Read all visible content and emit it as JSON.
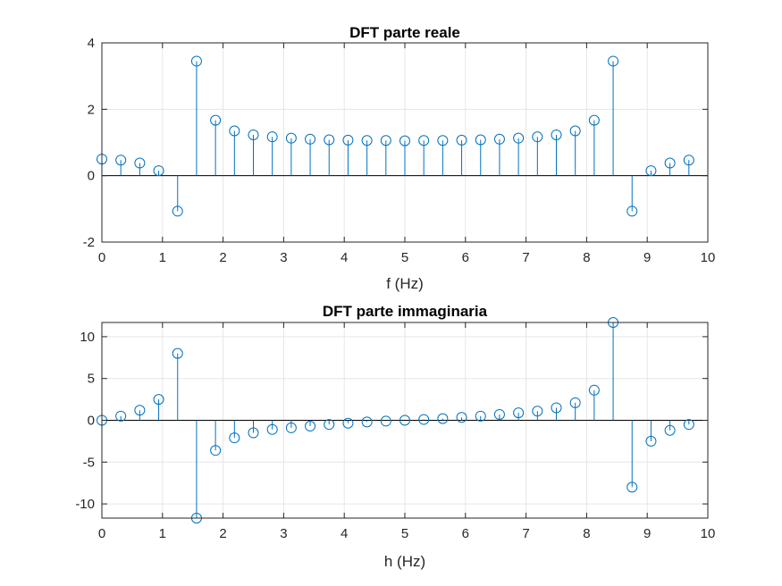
{
  "chart_data": [
    {
      "type": "stem",
      "title": "DFT parte reale",
      "xlabel": "f (Hz)",
      "ylabel": "",
      "xlim": [
        0,
        10
      ],
      "ylim": [
        -2,
        4
      ],
      "xticks": [
        0,
        1,
        2,
        3,
        4,
        5,
        6,
        7,
        8,
        9,
        10
      ],
      "yticks": [
        -2,
        0,
        2,
        4
      ],
      "grid": true,
      "color": "#0072bd",
      "x": [
        0,
        0.3125,
        0.625,
        0.9375,
        1.25,
        1.5625,
        1.875,
        2.1875,
        2.5,
        2.8125,
        3.125,
        3.4375,
        3.75,
        4.0625,
        4.375,
        4.6875,
        5.0,
        5.3125,
        5.625,
        5.9375,
        6.25,
        6.5625,
        6.875,
        7.1875,
        7.5,
        7.8125,
        8.125,
        8.4375,
        8.75,
        9.0625,
        9.375,
        9.6875
      ],
      "values": [
        0.5,
        0.47,
        0.38,
        0.15,
        -1.07,
        3.45,
        1.67,
        1.35,
        1.23,
        1.17,
        1.13,
        1.1,
        1.08,
        1.07,
        1.06,
        1.06,
        1.05,
        1.06,
        1.06,
        1.07,
        1.08,
        1.1,
        1.13,
        1.17,
        1.23,
        1.35,
        1.67,
        3.45,
        -1.07,
        0.15,
        0.38,
        0.47
      ]
    },
    {
      "type": "stem",
      "title": "DFT parte immaginaria",
      "xlabel": "h (Hz)",
      "ylabel": "",
      "xlim": [
        0,
        10
      ],
      "ylim": [
        -11.7,
        11.7
      ],
      "xticks": [
        0,
        1,
        2,
        3,
        4,
        5,
        6,
        7,
        8,
        9,
        10
      ],
      "yticks": [
        -10,
        -5,
        0,
        5,
        10
      ],
      "grid": true,
      "color": "#0072bd",
      "x": [
        0,
        0.3125,
        0.625,
        0.9375,
        1.25,
        1.5625,
        1.875,
        2.1875,
        2.5,
        2.8125,
        3.125,
        3.4375,
        3.75,
        4.0625,
        4.375,
        4.6875,
        5.0,
        5.3125,
        5.625,
        5.9375,
        6.25,
        6.5625,
        6.875,
        7.1875,
        7.5,
        7.8125,
        8.125,
        8.4375,
        8.75,
        9.0625,
        9.375,
        9.6875
      ],
      "values": [
        0,
        0.5,
        1.2,
        2.5,
        8.0,
        -11.7,
        -3.6,
        -2.1,
        -1.5,
        -1.1,
        -0.9,
        -0.7,
        -0.5,
        -0.35,
        -0.2,
        -0.1,
        0,
        0.1,
        0.2,
        0.35,
        0.5,
        0.7,
        0.9,
        1.1,
        1.5,
        2.1,
        3.6,
        11.7,
        -8.0,
        -2.5,
        -1.2,
        -0.5
      ]
    }
  ]
}
